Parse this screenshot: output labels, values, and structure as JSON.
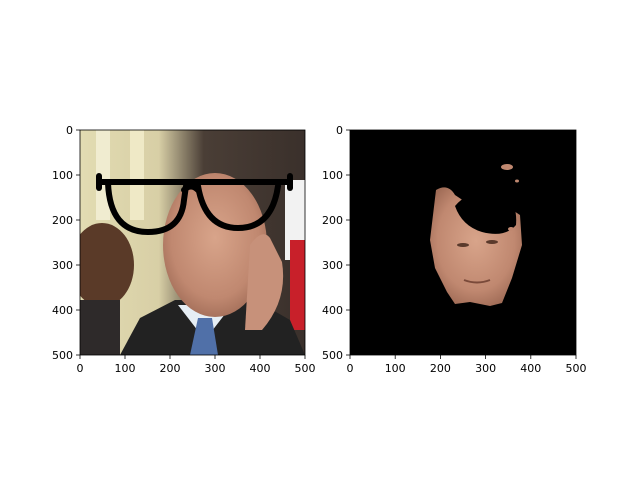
{
  "chart_data": [
    {
      "type": "image",
      "title": "",
      "xlabel": "",
      "ylabel": "",
      "xlim": [
        0,
        500
      ],
      "ylim": [
        500,
        0
      ],
      "xticks": [
        0,
        100,
        200,
        300,
        400,
        500
      ],
      "yticks": [
        0,
        100,
        200,
        300,
        400,
        500
      ],
      "xtick_labels": [
        "0",
        "100",
        "200",
        "300",
        "400",
        "500"
      ],
      "ytick_labels": [
        "0",
        "100",
        "200",
        "300",
        "400",
        "500"
      ],
      "content": "photo of a man with drawn-on black eyeglasses",
      "colors": {
        "frame": "#000000",
        "skin": "#c9957c",
        "background_light": "#d8cfa6",
        "background_dark": "#2f2a28"
      }
    },
    {
      "type": "image",
      "title": "",
      "xlabel": "",
      "ylabel": "",
      "xlim": [
        0,
        500
      ],
      "ylim": [
        500,
        0
      ],
      "xticks": [
        0,
        100,
        200,
        300,
        400,
        500
      ],
      "yticks": [
        0,
        100,
        200,
        300,
        400,
        500
      ],
      "xtick_labels": [
        "0",
        "100",
        "200",
        "300",
        "400",
        "500"
      ],
      "ytick_labels": [
        "0",
        "100",
        "200",
        "300",
        "400",
        "500"
      ],
      "content": "segmentation mask showing only the face region on black background",
      "colors": {
        "background": "#000000",
        "skin": "#c9957c"
      }
    }
  ]
}
